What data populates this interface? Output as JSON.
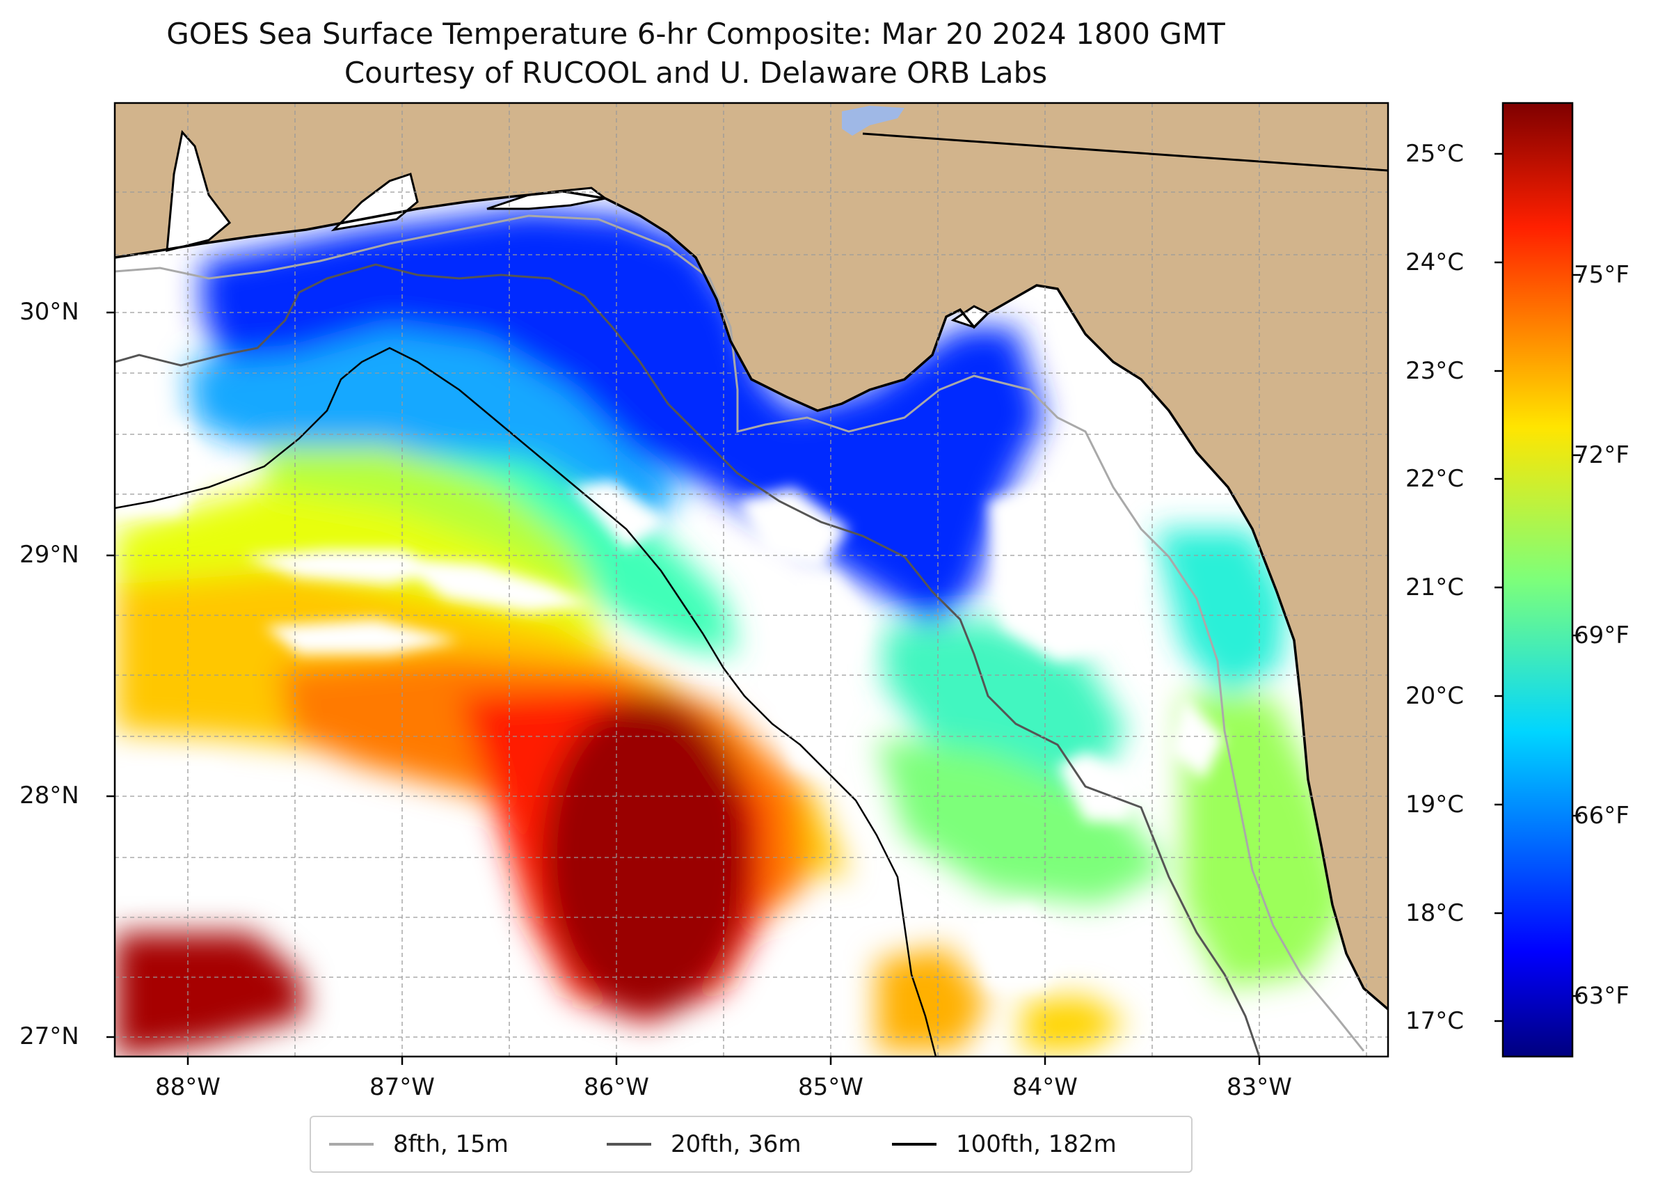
{
  "title": {
    "line1": "GOES Sea Surface Temperature 6-hr Composite: Mar 20 2024 1800 GMT",
    "line2": "Courtesy of RUCOOL and U. Delaware ORB Labs"
  },
  "map": {
    "lat_labels": [
      "30°N",
      "29°N",
      "28°N",
      "27°N"
    ],
    "lon_labels": [
      "88°W",
      "87°W",
      "86°W",
      "85°W",
      "84°W",
      "83°W"
    ],
    "land_color": "#d2b48c",
    "gridlines": true
  },
  "colorbar": {
    "colormap": "jet",
    "celsius_labels": [
      "25°C",
      "24°C",
      "23°C",
      "22°C",
      "21°C",
      "20°C",
      "19°C",
      "18°C",
      "17°C"
    ],
    "fahrenheit_labels": [
      "75°F",
      "72°F",
      "69°F",
      "66°F",
      "63°F"
    ],
    "range_celsius": [
      16.7,
      25.5
    ]
  },
  "legend": {
    "items": [
      {
        "label": "8fth, 15m",
        "color": "#a9a9a9"
      },
      {
        "label": "20fth, 36m",
        "color": "#555555"
      },
      {
        "label": "100fth, 182m",
        "color": "#000000"
      }
    ]
  }
}
